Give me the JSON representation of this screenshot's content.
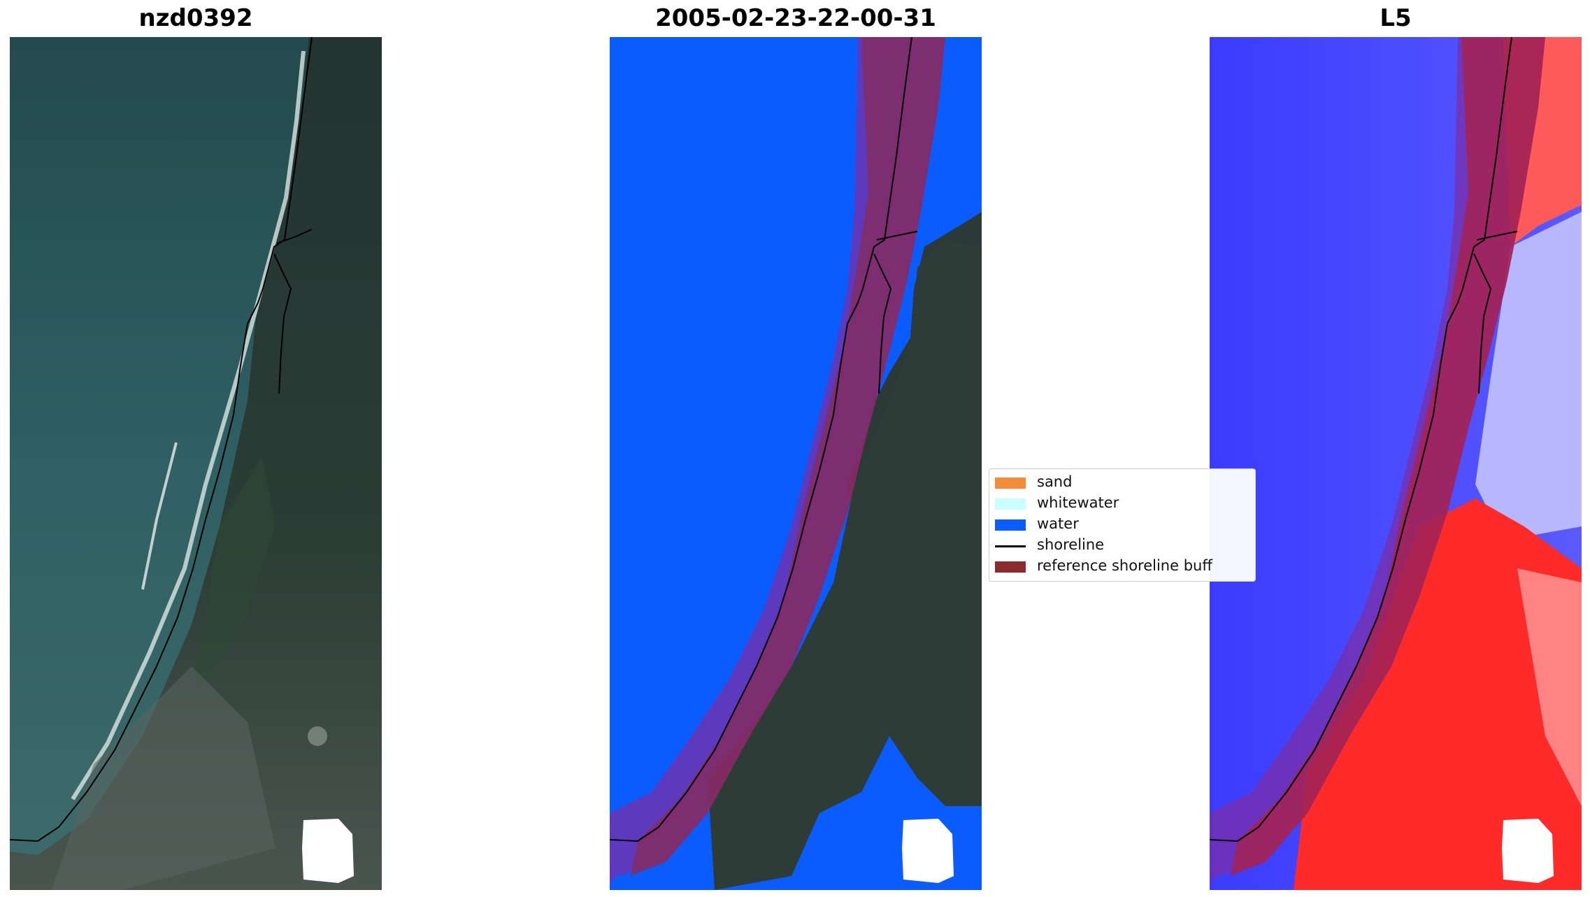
{
  "panels": [
    {
      "title": "nzd0392",
      "kind": "rgb"
    },
    {
      "title": "2005-02-23-22-00-31",
      "kind": "classified"
    },
    {
      "title": "L5",
      "kind": "probability"
    }
  ],
  "legend": {
    "items": [
      {
        "label": "sand",
        "color": "#f58c3c",
        "kind": "patch"
      },
      {
        "label": "whitewater",
        "color": "#c8ffff",
        "kind": "patch"
      },
      {
        "label": "water",
        "color": "#0a5cff",
        "kind": "patch"
      },
      {
        "label": "shoreline",
        "color": "#000000",
        "kind": "line"
      },
      {
        "label": "reference shoreline buff",
        "color": "#8b2a2f",
        "kind": "patch"
      }
    ]
  },
  "colors": {
    "sea_rgb": "#2f5a5e",
    "land_rgb": "#2b3a3a",
    "water_class": "#0a5cff",
    "buffer": "#8b2a2f",
    "prob_blue": "#3a3aff",
    "prob_red": "#ff2020"
  }
}
